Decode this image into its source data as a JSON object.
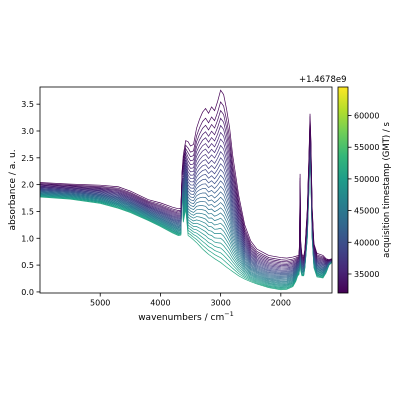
{
  "chart_data": {
    "type": "line",
    "xlabel": "wavenumbers / cm",
    "xlabel_superscript": "−1",
    "ylabel": "absorbance / a. u.",
    "x_axis_inverted": true,
    "xlim": [
      6000,
      1150
    ],
    "ylim": [
      -0.02,
      3.82
    ],
    "x_ticks": [
      5000,
      4000,
      3000,
      2000
    ],
    "x_tick_labels": [
      "5000",
      "4000",
      "3000",
      "2000"
    ],
    "y_ticks": [
      0.0,
      0.5,
      1.0,
      1.5,
      2.0,
      2.5,
      3.0,
      3.5
    ],
    "y_tick_labels": [
      "0.0",
      "0.5",
      "1.0",
      "1.5",
      "2.0",
      "2.5",
      "3.0",
      "3.5"
    ],
    "grid": false,
    "series_count": 30,
    "first_spectrum": {
      "color": "#440154",
      "points": [
        [
          6000,
          2.04
        ],
        [
          5500,
          2.01
        ],
        [
          5000,
          1.99
        ],
        [
          4700,
          1.96
        ],
        [
          4500,
          1.88
        ],
        [
          4200,
          1.72
        ],
        [
          4000,
          1.66
        ],
        [
          3800,
          1.58
        ],
        [
          3700,
          1.55
        ],
        [
          3660,
          1.56
        ],
        [
          3640,
          2.25
        ],
        [
          3620,
          2.55
        ],
        [
          3580,
          2.82
        ],
        [
          3540,
          2.8
        ],
        [
          3500,
          2.72
        ],
        [
          3450,
          2.75
        ],
        [
          3400,
          3.05
        ],
        [
          3350,
          3.22
        ],
        [
          3300,
          3.35
        ],
        [
          3250,
          3.42
        ],
        [
          3200,
          3.33
        ],
        [
          3150,
          3.45
        ],
        [
          3100,
          3.38
        ],
        [
          3050,
          3.55
        ],
        [
          3000,
          3.76
        ],
        [
          2950,
          3.68
        ],
        [
          2900,
          3.4
        ],
        [
          2850,
          3.05
        ],
        [
          2800,
          2.55
        ],
        [
          2700,
          1.8
        ],
        [
          2600,
          1.25
        ],
        [
          2500,
          0.95
        ],
        [
          2400,
          0.8
        ],
        [
          2200,
          0.68
        ],
        [
          2000,
          0.64
        ],
        [
          1900,
          0.63
        ],
        [
          1800,
          0.65
        ],
        [
          1700,
          0.68
        ],
        [
          1690,
          0.9
        ],
        [
          1680,
          2.2
        ],
        [
          1670,
          0.95
        ],
        [
          1650,
          0.7
        ],
        [
          1620,
          0.66
        ],
        [
          1600,
          0.8
        ],
        [
          1560,
          1.55
        ],
        [
          1530,
          2.65
        ],
        [
          1515,
          3.32
        ],
        [
          1500,
          2.8
        ],
        [
          1480,
          1.6
        ],
        [
          1450,
          0.9
        ],
        [
          1400,
          0.72
        ],
        [
          1300,
          0.68
        ],
        [
          1250,
          0.62
        ],
        [
          1200,
          0.6
        ],
        [
          1150,
          0.62
        ]
      ]
    },
    "last_spectrum": {
      "color": "#22a884",
      "points": [
        [
          6000,
          1.77
        ],
        [
          5500,
          1.73
        ],
        [
          5000,
          1.65
        ],
        [
          4700,
          1.56
        ],
        [
          4500,
          1.48
        ],
        [
          4200,
          1.33
        ],
        [
          4000,
          1.22
        ],
        [
          3800,
          1.1
        ],
        [
          3700,
          1.05
        ],
        [
          3660,
          1.06
        ],
        [
          3640,
          1.95
        ],
        [
          3620,
          1.3
        ],
        [
          3580,
          1.55
        ],
        [
          3540,
          1.05
        ],
        [
          3500,
          1.02
        ],
        [
          3400,
          0.92
        ],
        [
          3300,
          0.8
        ],
        [
          3200,
          0.7
        ],
        [
          3100,
          0.62
        ],
        [
          3000,
          0.55
        ],
        [
          2900,
          0.46
        ],
        [
          2800,
          0.38
        ],
        [
          2700,
          0.3
        ],
        [
          2600,
          0.24
        ],
        [
          2500,
          0.19
        ],
        [
          2400,
          0.15
        ],
        [
          2200,
          0.08
        ],
        [
          2000,
          0.04
        ],
        [
          1900,
          0.05
        ],
        [
          1800,
          0.1
        ],
        [
          1750,
          0.2
        ],
        [
          1720,
          0.3
        ],
        [
          1700,
          0.32
        ],
        [
          1690,
          0.4
        ],
        [
          1680,
          1.1
        ],
        [
          1670,
          0.4
        ],
        [
          1650,
          0.3
        ],
        [
          1620,
          0.3
        ],
        [
          1600,
          0.45
        ],
        [
          1560,
          1.0
        ],
        [
          1530,
          2.0
        ],
        [
          1515,
          2.6
        ],
        [
          1500,
          2.05
        ],
        [
          1480,
          1.0
        ],
        [
          1450,
          0.45
        ],
        [
          1400,
          0.28
        ],
        [
          1300,
          0.26
        ],
        [
          1250,
          0.35
        ],
        [
          1200,
          0.5
        ],
        [
          1150,
          0.55
        ]
      ]
    },
    "colorbar": {
      "label": "acquisition timestamp (GMT) / s",
      "offset_text": "+1.4678e9",
      "colormap": "viridis",
      "range": [
        32000,
        64500
      ],
      "ticks": [
        35000,
        40000,
        45000,
        50000,
        55000,
        60000
      ],
      "tick_labels": [
        "35000",
        "40000",
        "45000",
        "50000",
        "55000",
        "60000"
      ],
      "colors": [
        "#440154",
        "#482878",
        "#3e4989",
        "#31688e",
        "#26828e",
        "#1f9e89",
        "#35b779",
        "#6ece58",
        "#b5de2b",
        "#fde725"
      ]
    }
  }
}
